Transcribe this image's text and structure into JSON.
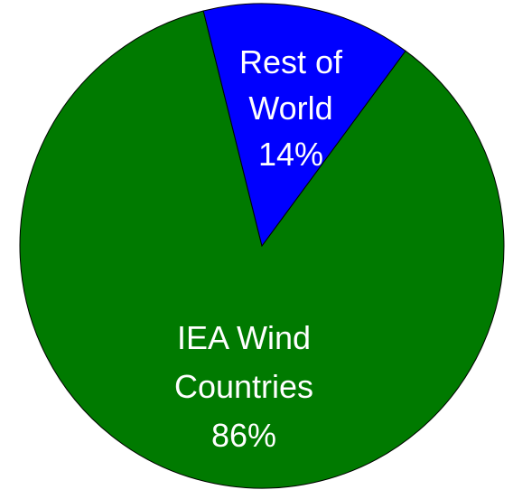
{
  "chart_data": {
    "type": "pie",
    "slices": [
      {
        "label_lines": [
          "IEA Wind",
          "Countries"
        ],
        "percent_label": "86%",
        "value": 86,
        "color": "#007A00"
      },
      {
        "label_lines": [
          "Rest of",
          "World"
        ],
        "percent_label": "14%",
        "value": 14,
        "color": "#0000FF"
      }
    ],
    "start_angle_deg": -14,
    "direction": "clockwise"
  }
}
